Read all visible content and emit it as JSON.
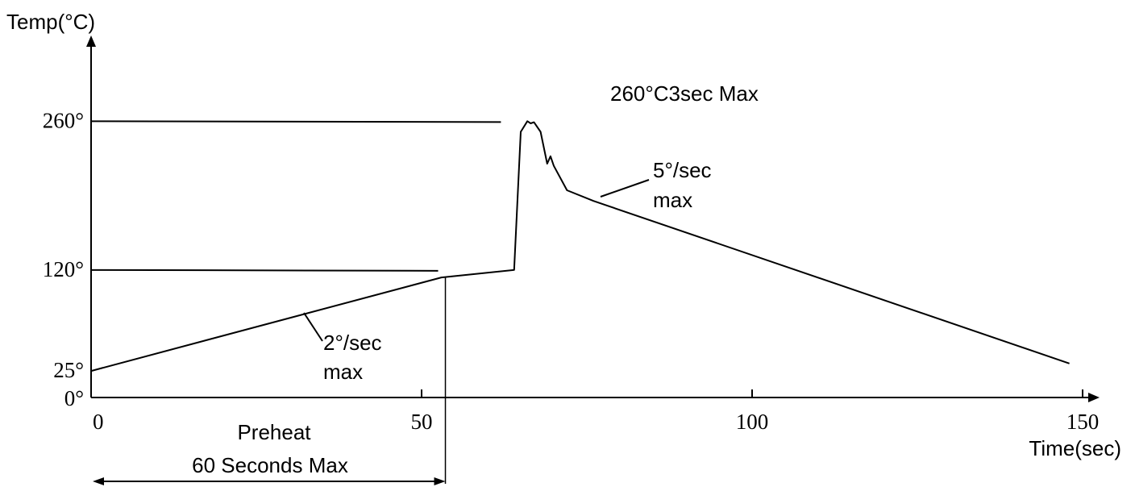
{
  "chart_data": {
    "type": "line",
    "title": "",
    "xlabel": "Time(sec)",
    "ylabel": "Temp(°C)",
    "x_ticks": [
      {
        "value": 0,
        "label": "0"
      },
      {
        "value": 50,
        "label": "50"
      },
      {
        "value": 100,
        "label": "100"
      },
      {
        "value": 150,
        "label": "150"
      }
    ],
    "y_ticks": [
      {
        "value": 0,
        "label": "0°"
      },
      {
        "value": 25,
        "label": "25°"
      },
      {
        "value": 120,
        "label": "120°"
      },
      {
        "value": 260,
        "label": "260°"
      }
    ],
    "xlim": [
      0,
      150
    ],
    "ylim": [
      0,
      260
    ],
    "series": [
      {
        "x": [
          0,
          53,
          64,
          65,
          66,
          66.5,
          67,
          68,
          69,
          69.5,
          70,
          72,
          76,
          148
        ],
        "y": [
          25,
          113,
          120,
          250,
          260,
          258,
          259,
          250,
          220,
          227,
          218,
          195,
          185,
          32
        ]
      }
    ],
    "reference_lines": {
      "h260_end_x": 62,
      "h120_end_x": 52.5,
      "preheat_end_x": 53.6
    },
    "annotations": {
      "peak_note": "260°C3sec Max",
      "ramp_up_rate": "2°/sec",
      "ramp_up_rate_max": "max",
      "ramp_down_rate": "5°/sec",
      "ramp_down_rate_max": "max",
      "preheat_label": "Preheat",
      "preheat_duration": "60 Seconds Max"
    }
  }
}
